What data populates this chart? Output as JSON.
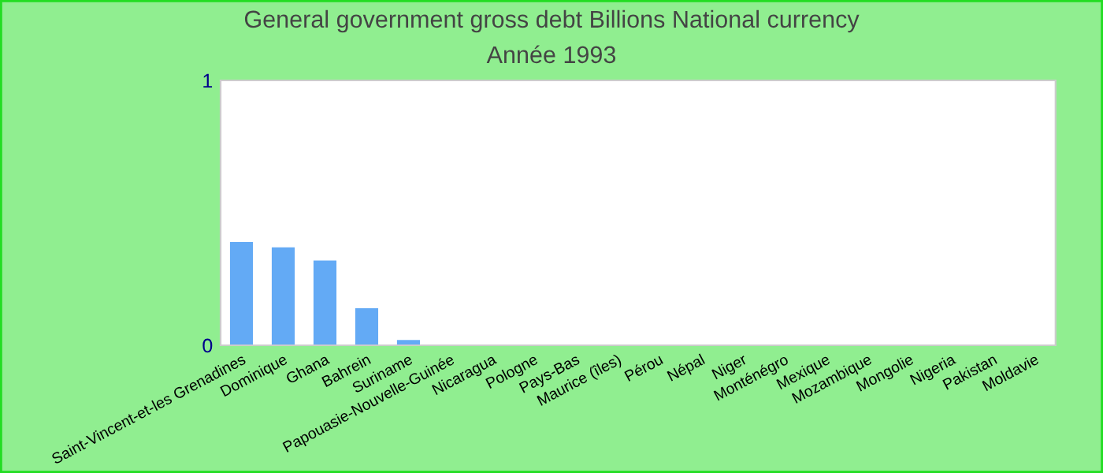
{
  "chart_data": {
    "type": "bar",
    "title": "General government gross debt Billions National currency",
    "subtitle": "Année 1993",
    "categories": [
      "Saint-Vincent-et-les Grenadines",
      "Dominique",
      "Ghana",
      "Bahrein",
      "Suriname",
      "Papouasie-Nouvelle-Guinée",
      "Nicaragua",
      "Pologne",
      "Pays-Bas",
      "Maurice (îles)",
      "Pérou",
      "Népal",
      "Niger",
      "Monténégro",
      "Mexique",
      "Mozambique",
      "Mongolie",
      "Nigeria",
      "Pakistan",
      "Moldavie"
    ],
    "values": [
      0.39,
      0.37,
      0.32,
      0.14,
      0.02,
      0,
      0,
      0,
      0,
      0,
      0,
      0,
      0,
      0,
      0,
      0,
      0,
      0,
      0,
      0
    ],
    "color": "#63aaf5",
    "ylim": [
      0,
      1
    ],
    "yticks": [
      0,
      1
    ],
    "grid": false,
    "legend": false
  }
}
